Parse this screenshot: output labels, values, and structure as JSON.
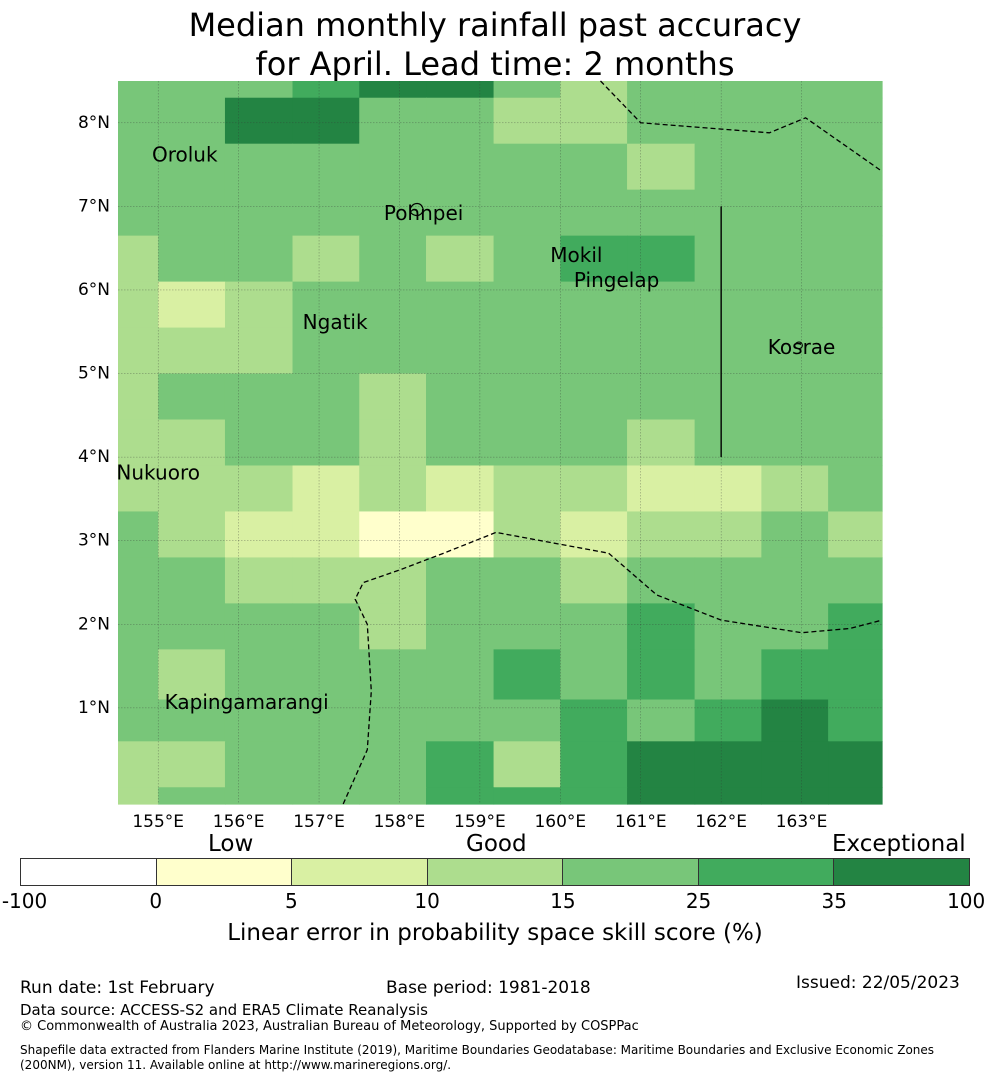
{
  "title": {
    "line1": "Median monthly rainfall past accuracy",
    "line2": "for April. Lead time: 2 months"
  },
  "map": {
    "lon_range": [
      154.5,
      164.0
    ],
    "lat_range": [
      -0.15,
      8.5
    ],
    "lon_ticks": [
      "155°E",
      "156°E",
      "157°E",
      "158°E",
      "159°E",
      "160°E",
      "161°E",
      "162°E",
      "163°E"
    ],
    "lat_ticks": [
      "1°N",
      "2°N",
      "3°N",
      "4°N",
      "5°N",
      "6°N",
      "7°N",
      "8°N"
    ],
    "grid_on": true,
    "grid_lon_edges": [
      154.5,
      155.0,
      155.83,
      156.67,
      157.5,
      158.33,
      159.17,
      160.0,
      160.83,
      161.67,
      162.5,
      163.33,
      164.0
    ],
    "grid_lat_edges": [
      8.5,
      8.3,
      7.75,
      7.2,
      6.65,
      6.1,
      5.55,
      5.0,
      4.45,
      3.9,
      3.35,
      2.8,
      2.25,
      1.7,
      1.1,
      0.6,
      0.05,
      -0.15
    ],
    "skill_classes": [
      [
        3,
        3,
        3,
        4,
        5,
        5,
        3,
        2,
        3,
        3,
        3,
        3
      ],
      [
        3,
        3,
        5,
        5,
        3,
        3,
        2,
        2,
        3,
        3,
        3,
        3
      ],
      [
        3,
        3,
        3,
        3,
        3,
        3,
        3,
        3,
        2,
        3,
        3,
        3
      ],
      [
        3,
        3,
        3,
        3,
        3,
        3,
        3,
        3,
        3,
        3,
        3,
        3
      ],
      [
        2,
        3,
        3,
        2,
        3,
        2,
        3,
        4,
        4,
        3,
        3,
        3
      ],
      [
        2,
        1,
        2,
        3,
        3,
        3,
        3,
        3,
        3,
        3,
        3,
        3
      ],
      [
        2,
        2,
        2,
        3,
        3,
        3,
        3,
        3,
        3,
        3,
        3,
        3
      ],
      [
        2,
        3,
        3,
        3,
        2,
        3,
        3,
        3,
        3,
        3,
        3,
        3
      ],
      [
        2,
        2,
        3,
        3,
        2,
        3,
        3,
        3,
        2,
        3,
        3,
        3
      ],
      [
        2,
        2,
        2,
        1,
        2,
        1,
        2,
        2,
        1,
        1,
        2,
        3
      ],
      [
        3,
        2,
        1,
        1,
        0,
        0,
        2,
        1,
        2,
        2,
        3,
        2
      ],
      [
        3,
        3,
        2,
        2,
        2,
        3,
        3,
        2,
        3,
        3,
        3,
        3
      ],
      [
        3,
        3,
        3,
        3,
        2,
        3,
        3,
        3,
        4,
        3,
        3,
        4
      ],
      [
        3,
        2,
        3,
        3,
        3,
        3,
        4,
        3,
        4,
        3,
        4,
        4
      ],
      [
        3,
        3,
        3,
        3,
        3,
        3,
        3,
        4,
        3,
        4,
        5,
        4
      ],
      [
        2,
        2,
        3,
        3,
        3,
        4,
        2,
        4,
        5,
        5,
        5,
        5
      ],
      [
        2,
        3,
        3,
        3,
        3,
        4,
        4,
        4,
        5,
        5,
        5,
        5
      ]
    ],
    "places": [
      {
        "name": "Oroluk",
        "lon": 155.33,
        "lat": 7.6
      },
      {
        "name": "Pohnpei",
        "lon": 158.3,
        "lat": 6.9
      },
      {
        "name": "Mokil",
        "lon": 160.2,
        "lat": 6.4
      },
      {
        "name": "Pingelap",
        "lon": 160.7,
        "lat": 6.1
      },
      {
        "name": "Ngatik",
        "lon": 157.2,
        "lat": 5.6
      },
      {
        "name": "Kosrae",
        "lon": 163.0,
        "lat": 5.3
      },
      {
        "name": "Nukuoro",
        "lon": 155.0,
        "lat": 3.8
      },
      {
        "name": "Kapingamarangi",
        "lon": 156.1,
        "lat": 1.05
      }
    ],
    "boundaries": [
      [
        [
          160.5,
          8.5
        ],
        [
          161.0,
          8.0
        ],
        [
          162.6,
          7.88
        ],
        [
          163.05,
          8.06
        ],
        [
          164.0,
          7.42
        ]
      ],
      [
        [
          157.3,
          -0.15
        ],
        [
          157.6,
          0.5
        ],
        [
          157.65,
          1.2
        ],
        [
          157.6,
          2.0
        ],
        [
          157.45,
          2.3
        ],
        [
          157.55,
          2.5
        ],
        [
          158.0,
          2.65
        ],
        [
          158.55,
          2.85
        ],
        [
          159.2,
          3.1
        ],
        [
          160.6,
          2.85
        ],
        [
          161.2,
          2.35
        ],
        [
          162.0,
          2.05
        ],
        [
          163.0,
          1.9
        ],
        [
          163.6,
          1.95
        ],
        [
          164.0,
          2.05
        ]
      ]
    ],
    "divider": [
      [
        162.0,
        7.0
      ],
      [
        162.0,
        4.0
      ]
    ]
  },
  "colorbar": {
    "category_labels": [
      "Low",
      "Good",
      "Exceptional"
    ],
    "ticks": [
      "-100",
      "0",
      "5",
      "10",
      "15",
      "25",
      "35",
      "100"
    ],
    "colors": [
      "#ffffff",
      "#ffffcc",
      "#d9f0a3",
      "#addd8e",
      "#78c679",
      "#41ab5d",
      "#238443"
    ],
    "title": "Linear error in probability space skill score (%)"
  },
  "footer": {
    "run_date": "Run date: 1st February",
    "base_period": "Base period: 1981-2018",
    "issued": "Issued: 22/05/2023",
    "data_source": "Data source: ACCESS-S2 and ERA5 Climate Reanalysis",
    "copyright": "© Commonwealth of Australia 2023, Australian Bureau of Meteorology, Supported by COSPPac",
    "shapefile_line1": "Shapefile data extracted from Flanders Marine Institute (2019), Maritime Boundaries Geodatabase: Maritime Boundaries and Exclusive Economic Zones",
    "shapefile_line2": "(200NM), version 11. Available online at http://www.marineregions.org/."
  }
}
